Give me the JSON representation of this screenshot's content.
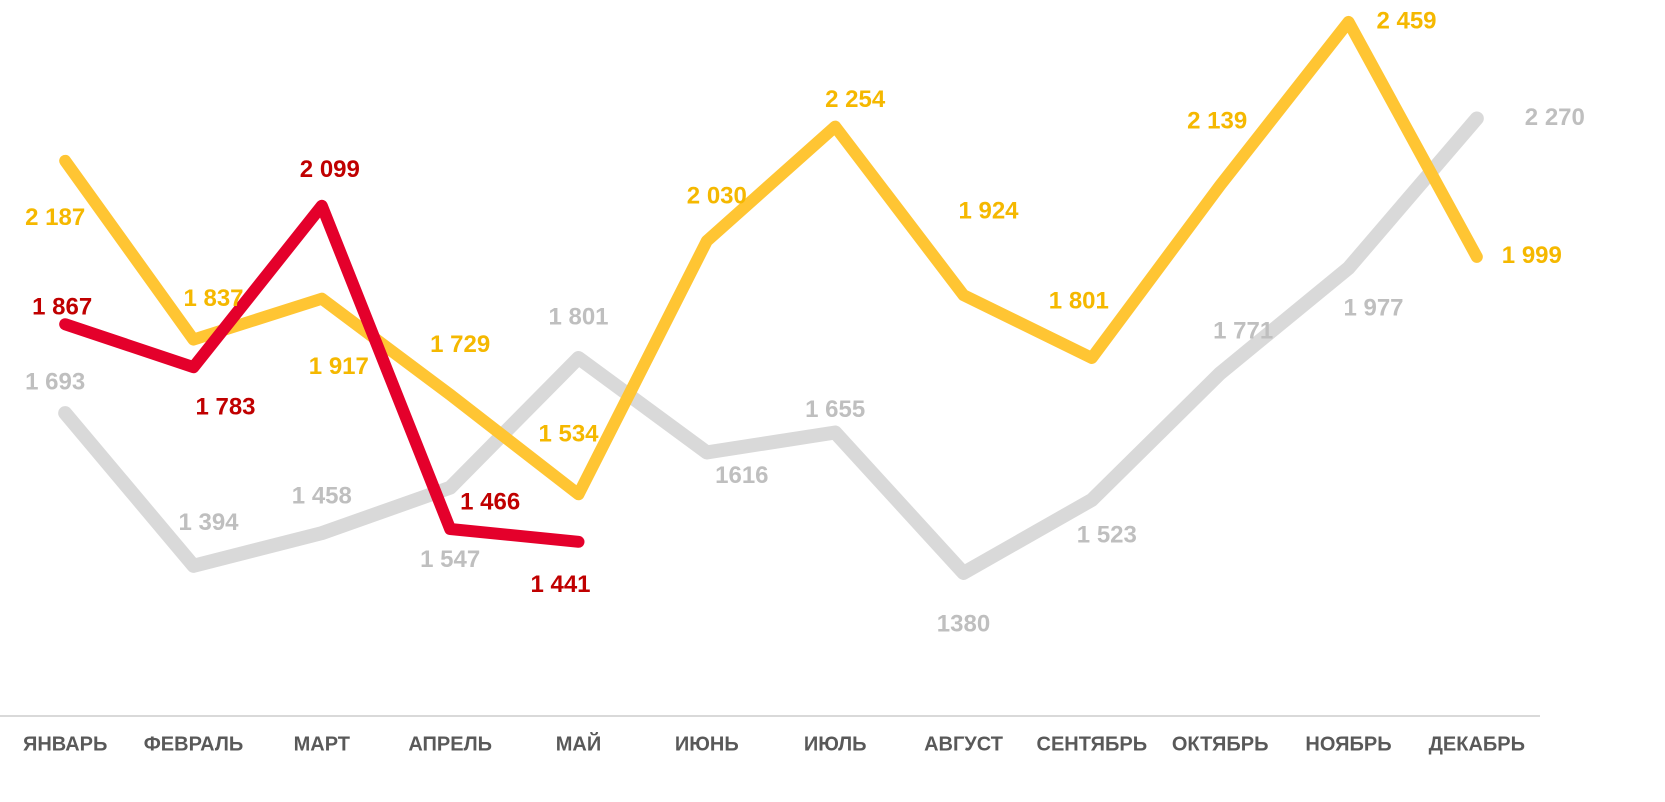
{
  "chart_data": {
    "type": "line",
    "categories": [
      "ЯНВАРЬ",
      "ФЕВРАЛЬ",
      "МАРТ",
      "АПРЕЛЬ",
      "МАЙ",
      "ИЮНЬ",
      "ИЮЛЬ",
      "АВГУСТ",
      "СЕНТЯБРЬ",
      "ОКТЯБРЬ",
      "НОЯБРЬ",
      "ДЕКАБРЬ"
    ],
    "series": [
      {
        "color": "#d9d9d9",
        "label_color": "#bfbfbf",
        "values": [
          1693,
          1394,
          1458,
          1547,
          1801,
          1616,
          1655,
          1380,
          1523,
          1771,
          1977,
          2270
        ],
        "value_labels": [
          "1 693",
          "1 394",
          "1 458",
          "1 547",
          "1 801",
          "1616",
          "1 655",
          "1380",
          "1 523",
          "1 771",
          "1 977",
          "2 270"
        ]
      },
      {
        "color": "#ffc533",
        "label_color": "#f5b800",
        "values": [
          2187,
          1837,
          1917,
          1729,
          1534,
          2030,
          2254,
          1924,
          1801,
          2139,
          2459,
          1999
        ],
        "value_labels": [
          "2 187",
          "1 837",
          "1 917",
          "1 729",
          "1 534",
          "2 030",
          "2 254",
          "1 924",
          "1 801",
          "2 139",
          "2 459",
          "1 999"
        ]
      },
      {
        "color": "#e4002b",
        "label_color": "#c00000",
        "values": [
          1867,
          1783,
          2099,
          1466,
          1441,
          null,
          null,
          null,
          null,
          null,
          null,
          null
        ],
        "value_labels": [
          "1 867",
          "1 783",
          "2 099",
          "1 466",
          "1 441",
          null,
          null,
          null,
          null,
          null,
          null,
          null
        ]
      }
    ],
    "ylim": [
      1000,
      2500
    ]
  }
}
